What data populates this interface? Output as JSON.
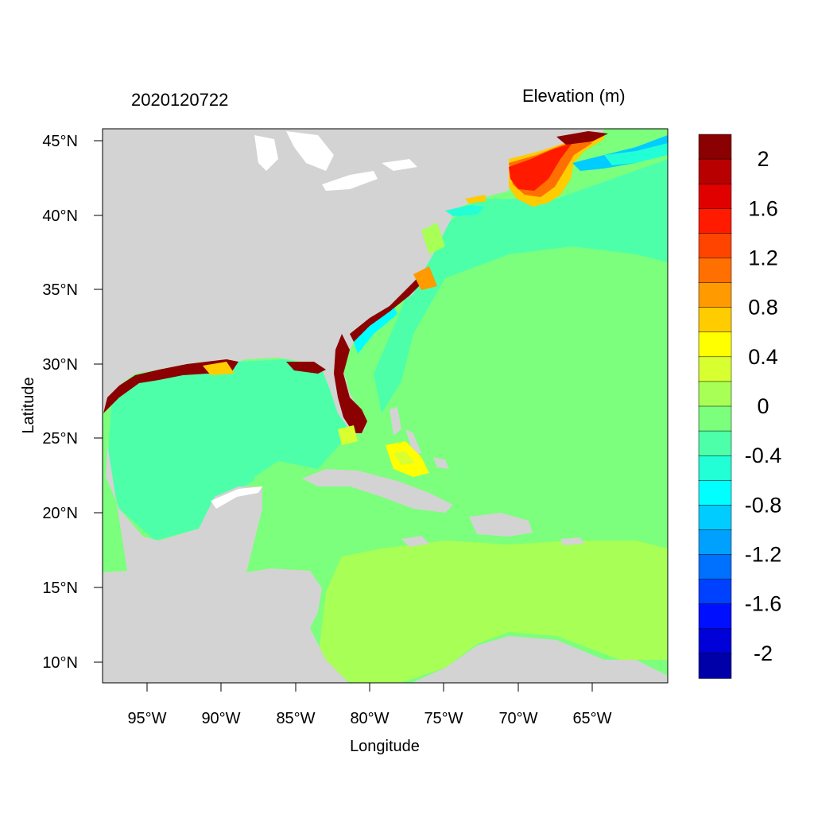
{
  "header": {
    "left_title": "2020120722",
    "right_title": "Elevation (m)"
  },
  "axes": {
    "xlabel": "Longitude",
    "ylabel": "Latitude",
    "x_ticks": [
      "95°W",
      "90°W",
      "85°W",
      "80°W",
      "75°W",
      "70°W",
      "65°W"
    ],
    "y_ticks": [
      "45°N",
      "40°N",
      "35°N",
      "30°N",
      "25°N",
      "20°N",
      "15°N",
      "10°N"
    ]
  },
  "colorbar": {
    "labels": [
      "2",
      "1.6",
      "1.2",
      "0.8",
      "0.4",
      "0",
      "-0.4",
      "-0.8",
      "-1.2",
      "-1.6",
      "-2"
    ],
    "colors": [
      "#8b0000",
      "#b80000",
      "#e00000",
      "#ff1a00",
      "#ff4400",
      "#ff7000",
      "#ff9a00",
      "#ffcc00",
      "#ffff00",
      "#d8ff30",
      "#a8ff55",
      "#7cff7c",
      "#4effaa",
      "#22ffd6",
      "#00ffff",
      "#00ccff",
      "#00a0ff",
      "#0070ff",
      "#0040ff",
      "#0010ff",
      "#0000d8",
      "#0000a8"
    ]
  },
  "map": {
    "land_color": "#d3d3d3",
    "ocean_base": "#7cff7c",
    "gulf_color": "#4effaa",
    "caribbean_color": "#a8ff55",
    "storm_surge_color": "#8b0000"
  }
}
